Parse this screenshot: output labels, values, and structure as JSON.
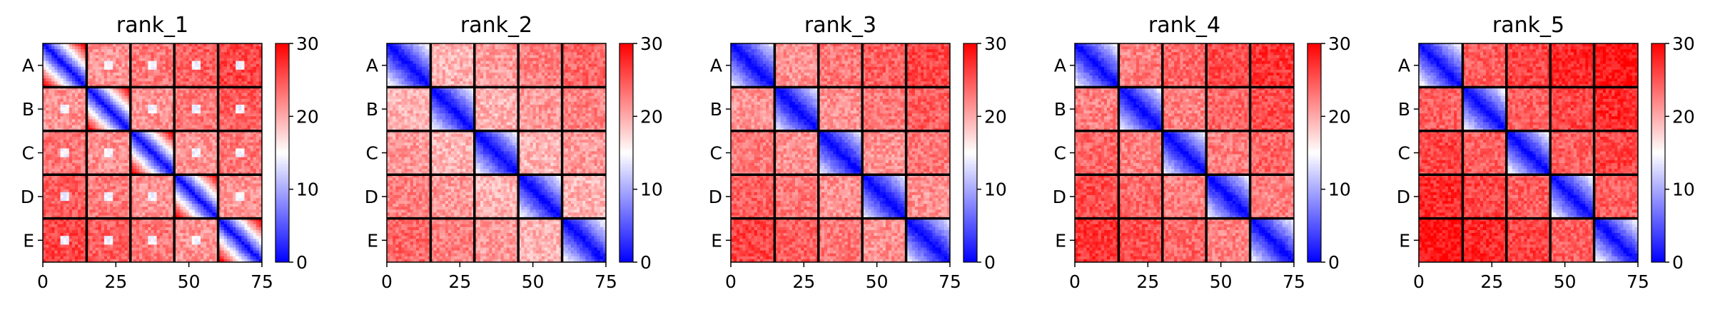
{
  "chart_data": [
    {
      "type": "heatmap",
      "title": "rank_1",
      "x_ticks": [
        0,
        25,
        50,
        75
      ],
      "y_ticks": [
        "A",
        "B",
        "C",
        "D",
        "E"
      ],
      "xlim": [
        0,
        75
      ],
      "grid_size": 75,
      "block_size": 15,
      "colorbar": {
        "ticks": [
          0,
          10,
          20,
          30
        ],
        "range": [
          0,
          30
        ],
        "colormap": "bwr"
      },
      "diagonal_value": 0,
      "gradient_per_step": 2.2,
      "off_diagonal_block_mean": 23,
      "outlier_value": 13
    },
    {
      "type": "heatmap",
      "title": "rank_2",
      "x_ticks": [
        0,
        25,
        50,
        75
      ],
      "y_ticks": [
        "A",
        "B",
        "C",
        "D",
        "E"
      ],
      "xlim": [
        0,
        75
      ],
      "grid_size": 75,
      "block_size": 15,
      "colorbar": {
        "ticks": [
          0,
          10,
          20,
          30
        ],
        "range": [
          0,
          30
        ],
        "colormap": "bwr"
      },
      "diagonal_value": 0,
      "gradient_per_step": 1.1,
      "off_diagonal_block_mean": 21
    },
    {
      "type": "heatmap",
      "title": "rank_3",
      "x_ticks": [
        0,
        25,
        50,
        75
      ],
      "y_ticks": [
        "A",
        "B",
        "C",
        "D",
        "E"
      ],
      "xlim": [
        0,
        75
      ],
      "grid_size": 75,
      "block_size": 15,
      "colorbar": {
        "ticks": [
          0,
          10,
          20,
          30
        ],
        "range": [
          0,
          30
        ],
        "colormap": "bwr"
      },
      "diagonal_value": 0,
      "gradient_per_step": 1.0,
      "off_diagonal_block_mean": 23
    },
    {
      "type": "heatmap",
      "title": "rank_4",
      "x_ticks": [
        0,
        25,
        50,
        75
      ],
      "y_ticks": [
        "A",
        "B",
        "C",
        "D",
        "E"
      ],
      "xlim": [
        0,
        75
      ],
      "grid_size": 75,
      "block_size": 15,
      "colorbar": {
        "ticks": [
          0,
          10,
          20,
          30
        ],
        "range": [
          0,
          30
        ],
        "colormap": "bwr"
      },
      "diagonal_value": 0,
      "gradient_per_step": 1.05,
      "off_diagonal_block_mean": 24
    },
    {
      "type": "heatmap",
      "title": "rank_5",
      "x_ticks": [
        0,
        25,
        50,
        75
      ],
      "y_ticks": [
        "A",
        "B",
        "C",
        "D",
        "E"
      ],
      "xlim": [
        0,
        75
      ],
      "grid_size": 75,
      "block_size": 15,
      "colorbar": {
        "ticks": [
          0,
          10,
          20,
          30
        ],
        "range": [
          0,
          30
        ],
        "colormap": "bwr"
      },
      "diagonal_value": 0,
      "gradient_per_step": 1.1,
      "off_diagonal_block_mean": 26
    }
  ]
}
